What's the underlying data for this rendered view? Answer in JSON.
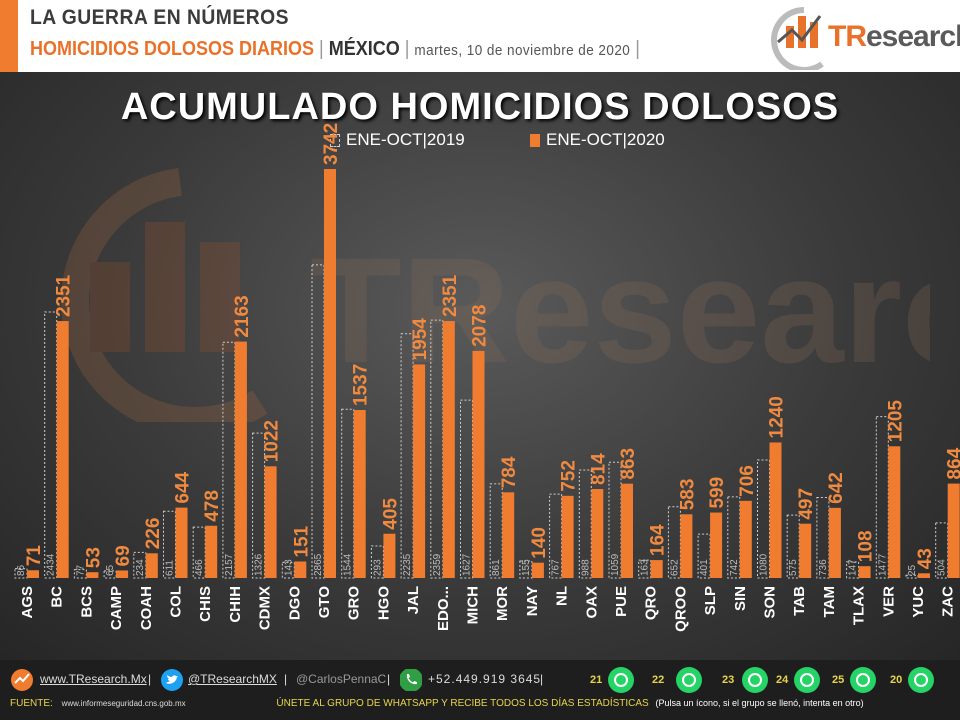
{
  "header": {
    "title": "LA GUERRA EN NÚMEROS",
    "subtitle": "HOMICIDIOS DOLOSOS DIARIOS",
    "region": "MÉXICO",
    "date": "martes, 10 de noviembre de 2020",
    "logo_text_t": "TR",
    "logo_text_rest": "esearch"
  },
  "watermark_text": "TResearch",
  "colors": {
    "accent": "#f07c30",
    "bg_dark": "#2e2e2e",
    "bar_2019_outline": "#cfcfcf",
    "whatsapp": "#25d366"
  },
  "chart_data": {
    "type": "bar",
    "title": "ACUMULADO HOMICIDIOS DOLOSOS",
    "categories": [
      "AGS",
      "BC",
      "BCS",
      "CAMP",
      "COAH",
      "COL",
      "CHIS",
      "CHIH",
      "CDMX",
      "DGO",
      "GTO",
      "GRO",
      "HGO",
      "JAL",
      "EDO...",
      "MICH",
      "MOR",
      "NAY",
      "NL",
      "OAX",
      "PUE",
      "QRO",
      "QROO",
      "SLP",
      "SIN",
      "SON",
      "TAB",
      "TAM",
      "TLAX",
      "VER",
      "YUC",
      "ZAC"
    ],
    "series": [
      {
        "name": "ENE-OCT|2019",
        "style": "dashed-outline",
        "values": [
          86,
          2434,
          77,
          65,
          234,
          611,
          466,
          2157,
          1326,
          143,
          2865,
          1544,
          293,
          2235,
          2359,
          1627,
          861,
          155,
          767,
          988,
          1059,
          163,
          652,
          401,
          742,
          1080,
          575,
          736,
          147,
          1477,
          25,
          504
        ]
      },
      {
        "name": "ENE-OCT|2020",
        "style": "solid-orange",
        "values": [
          71,
          2351,
          53,
          69,
          226,
          644,
          478,
          2163,
          1022,
          151,
          3742,
          1537,
          405,
          1954,
          2351,
          2078,
          784,
          140,
          752,
          814,
          863,
          164,
          583,
          599,
          706,
          1240,
          497,
          642,
          108,
          1205,
          43,
          864
        ]
      }
    ],
    "ylim": [
      0,
      3900
    ],
    "grid": false,
    "legend_position": "top-center"
  },
  "footer": {
    "website": "www.TResearch.Mx",
    "twitter": "@TResearchMX",
    "personal": "@CarlosPennaC",
    "phone": "+52.449.919 3645",
    "whatsapp_groups": [
      "21",
      "22",
      "23",
      "24",
      "25",
      "20"
    ],
    "source_label": "FUENTE:",
    "source_url": "www.informeseguridad.cns.gob.mx",
    "cta": "ÚNETE AL GRUPO DE WHATSAPP Y RECIBE TODOS LOS DÍAS ESTADÍSTICAS",
    "cta_note": "(Pulsa un ícono, si el grupo se llenó, intenta en otro)"
  }
}
